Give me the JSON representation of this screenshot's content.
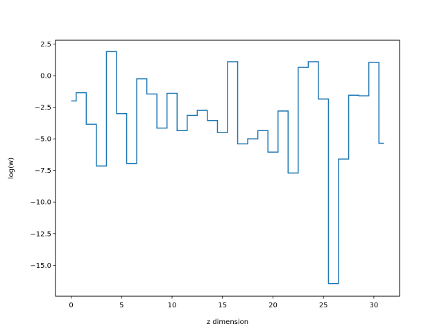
{
  "chart_data": {
    "type": "line",
    "drawstyle": "steps-mid",
    "title": "",
    "xlabel": "z dimension",
    "ylabel": "log(w)",
    "xlim": [
      -1.55,
      32.55
    ],
    "ylim": [
      -17.45,
      2.8
    ],
    "xticks": [
      0,
      5,
      10,
      15,
      20,
      25,
      30
    ],
    "xtick_labels": [
      "0",
      "5",
      "10",
      "15",
      "20",
      "25",
      "30"
    ],
    "yticks": [
      2.5,
      0.0,
      -2.5,
      -5.0,
      -7.5,
      -10.0,
      -12.5,
      -15.0
    ],
    "ytick_labels": [
      "2.5",
      "0.0",
      "−2.5",
      "−5.0",
      "−7.5",
      "−10.0",
      "−12.5",
      "−15.0"
    ],
    "grid": false,
    "legend": "none",
    "series": [
      {
        "color": "#1f77b4",
        "x": [
          0,
          1,
          2,
          3,
          4,
          5,
          6,
          7,
          8,
          9,
          10,
          11,
          12,
          13,
          14,
          15,
          16,
          17,
          18,
          19,
          20,
          21,
          22,
          23,
          24,
          25,
          26,
          27,
          28,
          29,
          30,
          31
        ],
        "values": [
          -2.0,
          -1.35,
          -3.85,
          -7.15,
          1.9,
          -3.0,
          -6.95,
          -0.25,
          -1.45,
          -4.15,
          -1.4,
          -4.35,
          -3.15,
          -2.75,
          -3.55,
          -4.5,
          1.1,
          -5.4,
          -5.0,
          -4.35,
          -6.05,
          -2.8,
          -7.7,
          0.65,
          1.1,
          -1.85,
          -16.45,
          -6.6,
          -1.55,
          -1.6,
          1.05,
          -5.35
        ]
      }
    ]
  }
}
